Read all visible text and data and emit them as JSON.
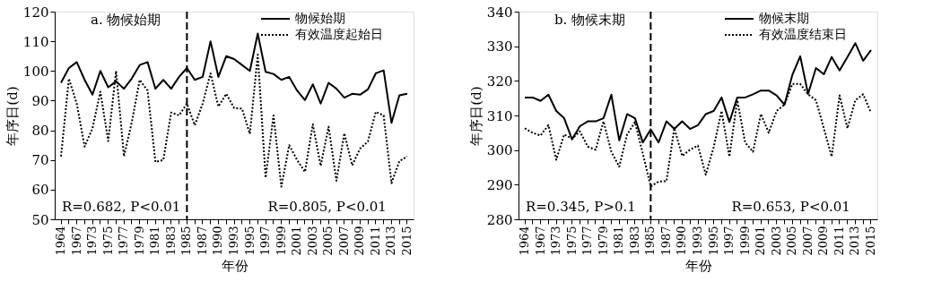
{
  "chart_data": [
    {
      "type": "line",
      "title": "a. 物候始期",
      "xlabel": "年份",
      "ylabel": "年序日(d)",
      "categories": [
        "1964",
        null,
        "1967",
        null,
        "1973",
        null,
        "1975",
        null,
        "1977",
        null,
        "1979",
        null,
        "1981",
        null,
        "1983",
        null,
        "1985",
        null,
        "1987",
        null,
        "1990",
        null,
        "1993",
        null,
        "1995",
        null,
        "1997",
        null,
        "1999",
        null,
        "2001",
        null,
        "2003",
        null,
        "2005",
        null,
        "2007",
        null,
        "2009",
        null,
        "2011",
        null,
        "2013",
        null,
        "2015"
      ],
      "series": [
        {
          "name": "物候始期",
          "color": "#000000",
          "line_style": "solid",
          "values": [
            96,
            101,
            103,
            97,
            92,
            100,
            94.5,
            96.5,
            94,
            97.5,
            102,
            103,
            94,
            97,
            94,
            98,
            101,
            97,
            98,
            110,
            98,
            105,
            104,
            102,
            100,
            112.6,
            99.7,
            99,
            97,
            98,
            93.4,
            90.2,
            95.5,
            89,
            96,
            94,
            91,
            92.3,
            92,
            93.8,
            99.2,
            100.2,
            82.5,
            91.8,
            92.3
          ]
        },
        {
          "name": "有效温度起始日",
          "color": "#000000",
          "line_style": "dotted",
          "values": [
            71.2,
            97.4,
            89,
            74.5,
            80.7,
            93,
            76.4,
            100,
            71.2,
            82.8,
            97,
            93.4,
            69.3,
            70,
            86,
            85,
            89,
            81.7,
            89,
            99.2,
            88,
            92.3,
            87.5,
            87.3,
            78.8,
            105.5,
            64,
            85,
            61,
            75,
            70,
            66,
            82,
            68,
            81.2,
            63,
            79,
            68.2,
            73.8,
            76.2,
            86.2,
            85,
            62.2,
            69.6,
            71.2
          ]
        }
      ],
      "ylim": [
        50,
        120
      ],
      "yticks": [
        50,
        60,
        70,
        80,
        90,
        100,
        110,
        120
      ],
      "grid": false,
      "legend": "top right",
      "ref_lines": [
        {
          "axis": "x",
          "value": "1985",
          "line_style": "dashed",
          "color": "#000000"
        }
      ],
      "annotations": [
        "R=0.682, P<0.01",
        "R=0.805, P<0.01"
      ]
    },
    {
      "type": "line",
      "title": "b. 物候末期",
      "xlabel": "年份",
      "ylabel": "年序日(d)",
      "categories": [
        "1964",
        null,
        "1967",
        null,
        "1973",
        null,
        "1975",
        null,
        "1977",
        null,
        "1979",
        null,
        "1981",
        null,
        "1983",
        null,
        "1985",
        null,
        "1987",
        null,
        "1990",
        null,
        "1993",
        null,
        "1995",
        null,
        "1997",
        null,
        "1999",
        null,
        "2001",
        null,
        "2003",
        null,
        "2005",
        null,
        "2007",
        null,
        "2009",
        null,
        "2011",
        null,
        "2013",
        null,
        "2015"
      ],
      "series": [
        {
          "name": "物候末期",
          "color": "#000000",
          "line_style": "solid",
          "values": [
            315.2,
            315.2,
            314.2,
            316,
            311.3,
            309.2,
            303.1,
            306.9,
            308.3,
            308.3,
            309.2,
            316,
            302.8,
            310.4,
            309.2,
            302.2,
            306,
            302.2,
            308.3,
            306.1,
            308.3,
            306.1,
            307.2,
            310.4,
            311.3,
            315.2,
            308.1,
            315.2,
            315.2,
            316.1,
            317.2,
            317.2,
            315.8,
            313.1,
            321.7,
            327.1,
            316.2,
            323.7,
            321.9,
            326.9,
            323,
            326.9,
            330.9,
            325.8,
            328.9
          ]
        },
        {
          "name": "有效温度结束日",
          "color": "#000000",
          "line_style": "dotted",
          "values": [
            306.3,
            305,
            304.2,
            307.2,
            297.2,
            304.5,
            303.3,
            305.4,
            301,
            300.1,
            308.3,
            299.5,
            295.2,
            304.5,
            308.1,
            299,
            289.5,
            290.9,
            291,
            306.3,
            298.3,
            300.1,
            301.3,
            292.9,
            300.8,
            311.3,
            298.1,
            314.4,
            302.2,
            299.5,
            310.4,
            305,
            311.3,
            313.1,
            319.1,
            319.1,
            316.1,
            314.4,
            306.3,
            298.1,
            315.8,
            306.3,
            314.4,
            316.1,
            310.8
          ]
        }
      ],
      "ylim": [
        280,
        340
      ],
      "yticks": [
        280,
        290,
        300,
        310,
        320,
        330,
        340
      ],
      "grid": false,
      "legend": "top right",
      "ref_lines": [
        {
          "axis": "x",
          "value": "1985",
          "line_style": "dashed",
          "color": "#000000"
        }
      ],
      "annotations": [
        "R=0.345, P>0.1",
        "R=0.653, P<0.01"
      ]
    }
  ]
}
